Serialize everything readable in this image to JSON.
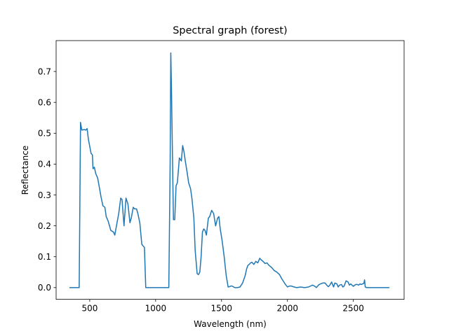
{
  "chart_data": {
    "type": "line",
    "title": "Spectral graph (forest)",
    "xlabel": "Wavelength (nm)",
    "ylabel": "Reflectance",
    "xlim": [
      245,
      2885
    ],
    "ylim": [
      -0.038,
      0.8
    ],
    "xticks": [
      500,
      1000,
      1500,
      2000,
      2500
    ],
    "xtick_labels": [
      "500",
      "1000",
      "1500",
      "2000",
      "2500"
    ],
    "yticks": [
      0.0,
      0.1,
      0.2,
      0.3,
      0.4,
      0.5,
      0.6,
      0.7
    ],
    "ytick_labels": [
      "0.0",
      "0.1",
      "0.2",
      "0.3",
      "0.4",
      "0.5",
      "0.6",
      "0.7"
    ],
    "grid": false,
    "legend": "none",
    "series": [
      {
        "color": "#1f77b4",
        "x": [
          350,
          400,
          420,
          430,
          440,
          460,
          470,
          480,
          490,
          510,
          520,
          525,
          535,
          545,
          560,
          575,
          585,
          600,
          615,
          625,
          640,
          660,
          680,
          690,
          705,
          720,
          735,
          745,
          760,
          775,
          790,
          805,
          815,
          830,
          840,
          855,
          865,
          880,
          895,
          905,
          915,
          925,
          1000,
          1050,
          1100,
          1110,
          1115,
          1120,
          1125,
          1135,
          1145,
          1155,
          1165,
          1180,
          1195,
          1205,
          1215,
          1225,
          1240,
          1250,
          1265,
          1275,
          1290,
          1300,
          1315,
          1325,
          1335,
          1345,
          1355,
          1365,
          1375,
          1385,
          1400,
          1410,
          1425,
          1440,
          1455,
          1470,
          1480,
          1490,
          1505,
          1520,
          1535,
          1550,
          1560,
          1570,
          1580,
          1600,
          1620,
          1640,
          1660,
          1680,
          1690,
          1700,
          1710,
          1720,
          1730,
          1745,
          1760,
          1775,
          1790,
          1800,
          1815,
          1830,
          1845,
          1860,
          1880,
          1900,
          1920,
          1940,
          1955,
          1970,
          1985,
          2000,
          2015,
          2030,
          2050,
          2070,
          2100,
          2130,
          2160,
          2175,
          2190,
          2205,
          2220,
          2235,
          2250,
          2270,
          2285,
          2300,
          2310,
          2320,
          2335,
          2350,
          2360,
          2375,
          2385,
          2395,
          2410,
          2420,
          2430,
          2445,
          2460,
          2470,
          2480,
          2500,
          2510,
          2520,
          2530,
          2540,
          2550,
          2560,
          2570,
          2580,
          2585,
          2590,
          2600,
          2650,
          2700,
          2770
        ],
        "y": [
          0.0,
          0.0,
          0.0,
          0.535,
          0.51,
          0.512,
          0.51,
          0.515,
          0.48,
          0.435,
          0.43,
          0.385,
          0.39,
          0.37,
          0.355,
          0.32,
          0.295,
          0.265,
          0.26,
          0.23,
          0.215,
          0.185,
          0.18,
          0.17,
          0.205,
          0.24,
          0.29,
          0.285,
          0.2,
          0.29,
          0.27,
          0.21,
          0.225,
          0.26,
          0.255,
          0.255,
          0.24,
          0.21,
          0.14,
          0.135,
          0.13,
          0.0,
          0.0,
          0.0,
          0.0,
          0.4,
          0.76,
          0.65,
          0.5,
          0.22,
          0.22,
          0.33,
          0.34,
          0.42,
          0.41,
          0.46,
          0.44,
          0.41,
          0.37,
          0.34,
          0.32,
          0.29,
          0.225,
          0.12,
          0.045,
          0.042,
          0.05,
          0.1,
          0.18,
          0.19,
          0.185,
          0.17,
          0.225,
          0.23,
          0.25,
          0.24,
          0.2,
          0.225,
          0.23,
          0.19,
          0.15,
          0.1,
          0.04,
          0.002,
          0.003,
          0.005,
          0.005,
          0.0,
          0.0,
          0.002,
          0.015,
          0.04,
          0.06,
          0.072,
          0.075,
          0.08,
          0.082,
          0.075,
          0.085,
          0.08,
          0.095,
          0.09,
          0.085,
          0.078,
          0.08,
          0.072,
          0.065,
          0.055,
          0.05,
          0.042,
          0.03,
          0.02,
          0.01,
          0.002,
          0.005,
          0.005,
          0.002,
          0.0,
          0.002,
          0.0,
          0.002,
          0.005,
          0.008,
          0.005,
          0.0,
          0.008,
          0.012,
          0.015,
          0.015,
          0.007,
          0.003,
          0.007,
          0.018,
          0.002,
          0.015,
          0.012,
          0.002,
          0.008,
          0.01,
          0.002,
          0.005,
          0.022,
          0.018,
          0.008,
          0.012,
          0.004,
          0.008,
          0.01,
          0.01,
          0.008,
          0.012,
          0.01,
          0.012,
          0.014,
          0.025,
          0.002,
          0.0,
          0.0,
          0.0,
          0.0
        ]
      }
    ]
  }
}
